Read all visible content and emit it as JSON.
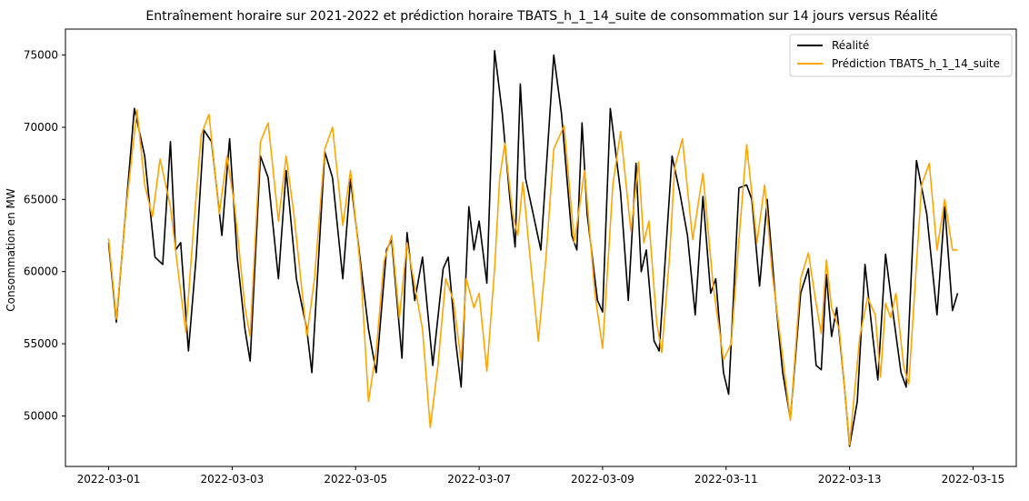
{
  "chart_data": {
    "type": "line",
    "title": "Entraînement horaire sur 2021-2022 et prédiction horaire TBATS_h_1_14_suite de consommation sur 14 jours versus Réalité",
    "xlabel": "",
    "ylabel": "Consommation en MW",
    "xlim": [
      "2022-03-01",
      "2022-03-15"
    ],
    "ylim": [
      46500,
      76800
    ],
    "x_ticks": [
      "2022-03-01",
      "2022-03-03",
      "2022-03-05",
      "2022-03-07",
      "2022-03-09",
      "2022-03-11",
      "2022-03-13",
      "2022-03-15"
    ],
    "y_ticks": [
      50000,
      55000,
      60000,
      65000,
      70000,
      75000
    ],
    "grid": false,
    "legend_position": "top-right",
    "series": [
      {
        "name": "Réalité",
        "color": "#000000",
        "points": [
          [
            "2022-03-01 00:00",
            62000
          ],
          [
            "2022-03-01 03:00",
            56500
          ],
          [
            "2022-03-01 07:00",
            65000
          ],
          [
            "2022-03-01 10:00",
            71300
          ],
          [
            "2022-03-01 14:00",
            68000
          ],
          [
            "2022-03-01 18:00",
            61000
          ],
          [
            "2022-03-01 21:00",
            60500
          ],
          [
            "2022-03-02 00:00",
            69000
          ],
          [
            "2022-03-02 02:00",
            61500
          ],
          [
            "2022-03-02 04:00",
            62000
          ],
          [
            "2022-03-02 07:00",
            54500
          ],
          [
            "2022-03-02 10:00",
            61000
          ],
          [
            "2022-03-02 13:00",
            69800
          ],
          [
            "2022-03-02 16:00",
            69000
          ],
          [
            "2022-03-02 20:00",
            62500
          ],
          [
            "2022-03-02 23:00",
            69200
          ],
          [
            "2022-03-03 02:00",
            61000
          ],
          [
            "2022-03-03 05:00",
            56000
          ],
          [
            "2022-03-03 07:00",
            53800
          ],
          [
            "2022-03-03 11:00",
            68000
          ],
          [
            "2022-03-03 14:00",
            66500
          ],
          [
            "2022-03-03 18:00",
            59500
          ],
          [
            "2022-03-03 21:00",
            67000
          ],
          [
            "2022-03-04 01:00",
            59500
          ],
          [
            "2022-03-04 05:00",
            56000
          ],
          [
            "2022-03-04 07:00",
            53000
          ],
          [
            "2022-03-04 12:00",
            68300
          ],
          [
            "2022-03-04 15:00",
            66500
          ],
          [
            "2022-03-04 19:00",
            59500
          ],
          [
            "2022-03-04 22:00",
            66400
          ],
          [
            "2022-03-05 02:00",
            60500
          ],
          [
            "2022-03-05 05:00",
            56000
          ],
          [
            "2022-03-05 08:00",
            53000
          ],
          [
            "2022-03-05 12:00",
            61500
          ],
          [
            "2022-03-05 14:00",
            62200
          ],
          [
            "2022-03-05 18:00",
            54000
          ],
          [
            "2022-03-05 20:00",
            62700
          ],
          [
            "2022-03-05 23:00",
            58000
          ],
          [
            "2022-03-06 02:00",
            61000
          ],
          [
            "2022-03-06 06:00",
            53500
          ],
          [
            "2022-03-06 10:00",
            60200
          ],
          [
            "2022-03-06 12:00",
            61000
          ],
          [
            "2022-03-06 15:00",
            55000
          ],
          [
            "2022-03-06 17:00",
            52000
          ],
          [
            "2022-03-06 20:00",
            64500
          ],
          [
            "2022-03-06 22:00",
            61500
          ],
          [
            "2022-03-07 00:00",
            63500
          ],
          [
            "2022-03-07 03:00",
            59200
          ],
          [
            "2022-03-07 06:00",
            75300
          ],
          [
            "2022-03-07 09:00",
            71000
          ],
          [
            "2022-03-07 12:00",
            65000
          ],
          [
            "2022-03-07 14:00",
            61700
          ],
          [
            "2022-03-07 16:00",
            73000
          ],
          [
            "2022-03-07 18:00",
            66500
          ],
          [
            "2022-03-07 21:00",
            64000
          ],
          [
            "2022-03-08 00:00",
            61500
          ],
          [
            "2022-03-08 05:00",
            75000
          ],
          [
            "2022-03-08 08:00",
            71000
          ],
          [
            "2022-03-08 12:00",
            62500
          ],
          [
            "2022-03-08 14:00",
            61500
          ],
          [
            "2022-03-08 16:00",
            70300
          ],
          [
            "2022-03-08 18:00",
            64000
          ],
          [
            "2022-03-08 22:00",
            58000
          ],
          [
            "2022-03-09 00:00",
            57200
          ],
          [
            "2022-03-09 03:00",
            71300
          ],
          [
            "2022-03-09 07:00",
            65500
          ],
          [
            "2022-03-09 10:00",
            58000
          ],
          [
            "2022-03-09 13:00",
            67500
          ],
          [
            "2022-03-09 15:00",
            60000
          ],
          [
            "2022-03-09 17:00",
            61500
          ],
          [
            "2022-03-09 20:00",
            55200
          ],
          [
            "2022-03-09 22:00",
            54500
          ],
          [
            "2022-03-10 03:00",
            68000
          ],
          [
            "2022-03-10 06:00",
            65500
          ],
          [
            "2022-03-10 09:00",
            62500
          ],
          [
            "2022-03-10 12:00",
            57000
          ],
          [
            "2022-03-10 15:00",
            65200
          ],
          [
            "2022-03-10 18:00",
            58500
          ],
          [
            "2022-03-10 20:00",
            59500
          ],
          [
            "2022-03-10 23:00",
            53000
          ],
          [
            "2022-03-11 01:00",
            51500
          ],
          [
            "2022-03-11 05:00",
            65800
          ],
          [
            "2022-03-11 08:00",
            66000
          ],
          [
            "2022-03-11 10:00",
            65000
          ],
          [
            "2022-03-11 13:00",
            59000
          ],
          [
            "2022-03-11 16:00",
            65000
          ],
          [
            "2022-03-11 19:00",
            58500
          ],
          [
            "2022-03-11 22:00",
            53000
          ],
          [
            "2022-03-12 01:00",
            49800
          ],
          [
            "2022-03-12 05:00",
            58500
          ],
          [
            "2022-03-12 08:00",
            60200
          ],
          [
            "2022-03-12 11:00",
            53500
          ],
          [
            "2022-03-12 13:00",
            53200
          ],
          [
            "2022-03-12 15:00",
            59800
          ],
          [
            "2022-03-12 17:00",
            55500
          ],
          [
            "2022-03-12 19:00",
            57500
          ],
          [
            "2022-03-12 22:00",
            52000
          ],
          [
            "2022-03-13 00:00",
            47900
          ],
          [
            "2022-03-13 03:00",
            51000
          ],
          [
            "2022-03-13 06:00",
            60500
          ],
          [
            "2022-03-13 09:00",
            55500
          ],
          [
            "2022-03-13 11:00",
            52500
          ],
          [
            "2022-03-13 14:00",
            61200
          ],
          [
            "2022-03-13 17:00",
            57000
          ],
          [
            "2022-03-13 20:00",
            53000
          ],
          [
            "2022-03-13 22:00",
            52000
          ],
          [
            "2022-03-14 02:00",
            67700
          ],
          [
            "2022-03-14 06:00",
            64000
          ],
          [
            "2022-03-14 10:00",
            57000
          ],
          [
            "2022-03-14 13:00",
            64500
          ],
          [
            "2022-03-14 16:00",
            57300
          ],
          [
            "2022-03-14 18:00",
            58500
          ]
        ]
      },
      {
        "name": "Prédiction TBATS_h_1_14_suite",
        "color": "#FFA500",
        "points": [
          [
            "2022-03-01 00:00",
            62300
          ],
          [
            "2022-03-01 03:00",
            56700
          ],
          [
            "2022-03-01 07:00",
            64800
          ],
          [
            "2022-03-01 11:00",
            71200
          ],
          [
            "2022-03-01 14:00",
            66000
          ],
          [
            "2022-03-01 17:00",
            63800
          ],
          [
            "2022-03-01 20:00",
            67800
          ],
          [
            "2022-03-02 00:00",
            64500
          ],
          [
            "2022-03-02 03:00",
            60000
          ],
          [
            "2022-03-02 06:00",
            55800
          ],
          [
            "2022-03-02 09:00",
            63000
          ],
          [
            "2022-03-02 12:00",
            69500
          ],
          [
            "2022-03-02 15:00",
            70900
          ],
          [
            "2022-03-02 19:00",
            64000
          ],
          [
            "2022-03-02 22:00",
            68000
          ],
          [
            "2022-03-03 01:00",
            64500
          ],
          [
            "2022-03-03 05:00",
            57500
          ],
          [
            "2022-03-03 07:00",
            55500
          ],
          [
            "2022-03-03 11:00",
            69000
          ],
          [
            "2022-03-03 14:00",
            70300
          ],
          [
            "2022-03-03 18:00",
            63500
          ],
          [
            "2022-03-03 21:00",
            68000
          ],
          [
            "2022-03-04 00:00",
            64000
          ],
          [
            "2022-03-04 05:00",
            55500
          ],
          [
            "2022-03-04 08:00",
            59500
          ],
          [
            "2022-03-04 12:00",
            68500
          ],
          [
            "2022-03-04 15:00",
            70000
          ],
          [
            "2022-03-04 19:00",
            63200
          ],
          [
            "2022-03-04 22:00",
            67000
          ],
          [
            "2022-03-05 02:00",
            60000
          ],
          [
            "2022-03-05 05:00",
            51000
          ],
          [
            "2022-03-05 08:00",
            54500
          ],
          [
            "2022-03-05 11:00",
            60700
          ],
          [
            "2022-03-05 14:00",
            62500
          ],
          [
            "2022-03-05 17:00",
            56800
          ],
          [
            "2022-03-05 20:00",
            62000
          ],
          [
            "2022-03-05 23:00",
            59000
          ],
          [
            "2022-03-06 02:00",
            56000
          ],
          [
            "2022-03-06 05:00",
            49200
          ],
          [
            "2022-03-06 08:00",
            53500
          ],
          [
            "2022-03-06 11:00",
            59500
          ],
          [
            "2022-03-06 14:00",
            58000
          ],
          [
            "2022-03-06 17:00",
            53800
          ],
          [
            "2022-03-06 19:00",
            59500
          ],
          [
            "2022-03-06 22:00",
            57500
          ],
          [
            "2022-03-07 00:00",
            58500
          ],
          [
            "2022-03-07 03:00",
            53100
          ],
          [
            "2022-03-07 06:00",
            60200
          ],
          [
            "2022-03-07 08:00",
            66500
          ],
          [
            "2022-03-07 10:00",
            68900
          ],
          [
            "2022-03-07 13:00",
            64000
          ],
          [
            "2022-03-07 15:00",
            62500
          ],
          [
            "2022-03-07 17:00",
            66200
          ],
          [
            "2022-03-07 19:00",
            62500
          ],
          [
            "2022-03-07 23:00",
            55200
          ],
          [
            "2022-03-08 02:00",
            61000
          ],
          [
            "2022-03-08 05:00",
            68500
          ],
          [
            "2022-03-08 09:00",
            70100
          ],
          [
            "2022-03-08 13:00",
            62000
          ],
          [
            "2022-03-08 17:00",
            67000
          ],
          [
            "2022-03-08 21:00",
            58500
          ],
          [
            "2022-03-09 00:00",
            54700
          ],
          [
            "2022-03-09 04:00",
            66000
          ],
          [
            "2022-03-09 07:00",
            69700
          ],
          [
            "2022-03-09 11:00",
            62800
          ],
          [
            "2022-03-09 14:00",
            67600
          ],
          [
            "2022-03-09 16:00",
            62000
          ],
          [
            "2022-03-09 18:00",
            63500
          ],
          [
            "2022-03-09 21:00",
            56500
          ],
          [
            "2022-03-09 23:00",
            54400
          ],
          [
            "2022-03-10 02:00",
            61000
          ],
          [
            "2022-03-10 04:00",
            67200
          ],
          [
            "2022-03-10 07:00",
            69200
          ],
          [
            "2022-03-10 11:00",
            62200
          ],
          [
            "2022-03-10 15:00",
            66800
          ],
          [
            "2022-03-10 19:00",
            59000
          ],
          [
            "2022-03-10 23:00",
            53900
          ],
          [
            "2022-03-11 02:00",
            55000
          ],
          [
            "2022-03-11 05:00",
            62200
          ],
          [
            "2022-03-11 08:00",
            68800
          ],
          [
            "2022-03-11 12:00",
            62000
          ],
          [
            "2022-03-11 15:00",
            66000
          ],
          [
            "2022-03-11 18:00",
            59800
          ],
          [
            "2022-03-11 21:00",
            55500
          ],
          [
            "2022-03-12 01:00",
            49700
          ],
          [
            "2022-03-12 05:00",
            59500
          ],
          [
            "2022-03-12 08:00",
            61300
          ],
          [
            "2022-03-12 11:00",
            57800
          ],
          [
            "2022-03-12 13:00",
            55700
          ],
          [
            "2022-03-12 15:00",
            60800
          ],
          [
            "2022-03-12 17:00",
            57500
          ],
          [
            "2022-03-12 20:00",
            56000
          ],
          [
            "2022-03-13 00:00",
            48000
          ],
          [
            "2022-03-13 04:00",
            55500
          ],
          [
            "2022-03-13 07:00",
            58200
          ],
          [
            "2022-03-13 10:00",
            57000
          ],
          [
            "2022-03-13 12:00",
            52700
          ],
          [
            "2022-03-13 14:00",
            57800
          ],
          [
            "2022-03-13 16:00",
            56800
          ],
          [
            "2022-03-13 18:00",
            58500
          ],
          [
            "2022-03-13 21:00",
            53500
          ],
          [
            "2022-03-13 23:00",
            52200
          ],
          [
            "2022-03-14 02:00",
            60500
          ],
          [
            "2022-03-14 04:00",
            66000
          ],
          [
            "2022-03-14 07:00",
            67500
          ],
          [
            "2022-03-14 10:00",
            61500
          ],
          [
            "2022-03-14 13:00",
            65000
          ],
          [
            "2022-03-14 16:00",
            61500
          ],
          [
            "2022-03-14 18:00",
            61500
          ]
        ]
      }
    ]
  }
}
